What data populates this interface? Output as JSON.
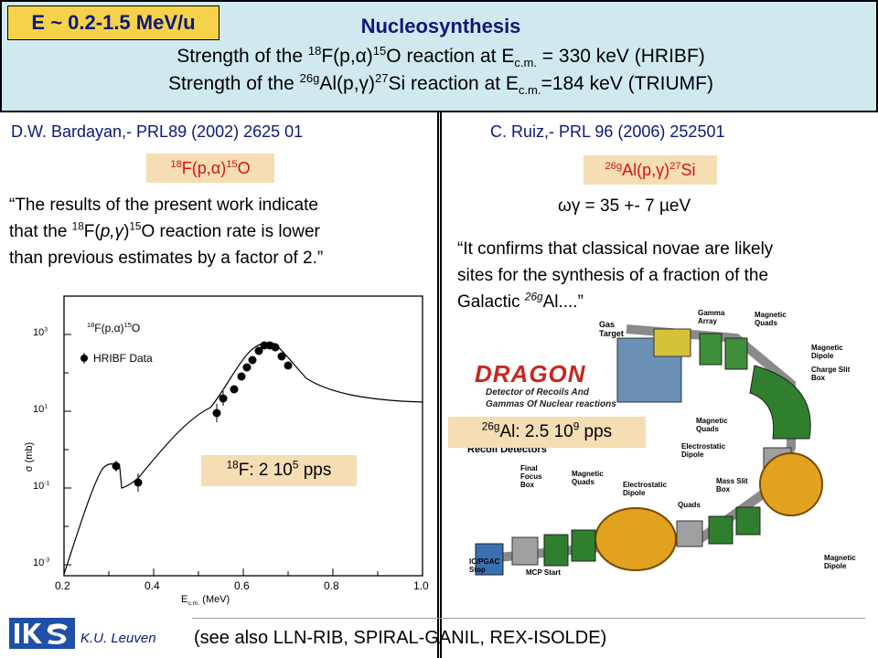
{
  "header": {
    "badge": "E ~ 0.2-1.5 MeV/u",
    "title": "Nucleosynthesis"
  },
  "left": {
    "reference": "D.W. Bardayan,- PRL89 (2002) 2625 01",
    "quote_line3": "than previous estimates by a factor of 2.”",
    "pps_box": "F: 2 10",
    "pps_unit": "pps"
  },
  "right": {
    "reference": "C. Ruiz,- PRL 96 (2006) 252501",
    "omega_gamma": "= 35 +- 7",
    "quote_line1": "“It confirms that classical novae are likely",
    "quote_line2": "sites for the synthesis of a fraction of the",
    "quote_line3": "Galactic",
    "pps_box_value": "Al:  2.5 10",
    "pps_box_unit": "pps",
    "dragon_title": "DRAGON",
    "dragon_sub1": "Detector of Recoils And",
    "dragon_sub2": "Gammas Of Nuclear reactions",
    "labels": {
      "gas_target": "Gas Target",
      "gamma_array": "Gamma Array",
      "magnetic_quads": "Magnetic Quads",
      "magnetic_dipole": "Magnetic Dipole",
      "charge_slit_box": "Charge Slit Box",
      "electrostatic_dipole": "Electrostatic Dipole",
      "mass_slit_box": "Mass Slit Box",
      "quads": "Quads",
      "final_focus_box": "Final Focus Box",
      "recoil_detectors": "Recoil Detectors",
      "ic_pgac_stop": "IC/PGAC Stop",
      "mcp_start": "MCP Start"
    }
  },
  "plot": {
    "legend_reaction": "F(p,α)",
    "legend_data": "HRIBF Data",
    "y_axis_label": "σ (mb)",
    "x_axis_label": "E",
    "x_axis_unit": "(MeV)",
    "x_ticks": [
      "0.2",
      "0.4",
      "0.6",
      "0.8",
      "1.0"
    ],
    "y_tick_base": "10"
  },
  "footer": {
    "institution": "K.U. Leuven",
    "see_also": "(see also LLN-RIB, SPIRAL-GANIL, REX-ISOLDE)"
  },
  "colors": {
    "header_bg": "#cfe9ef",
    "badge_bg": "#f5d24a",
    "box_bg": "#f5ddb4",
    "reaction_red": "#d31414",
    "navy": "#0a1a7a"
  }
}
